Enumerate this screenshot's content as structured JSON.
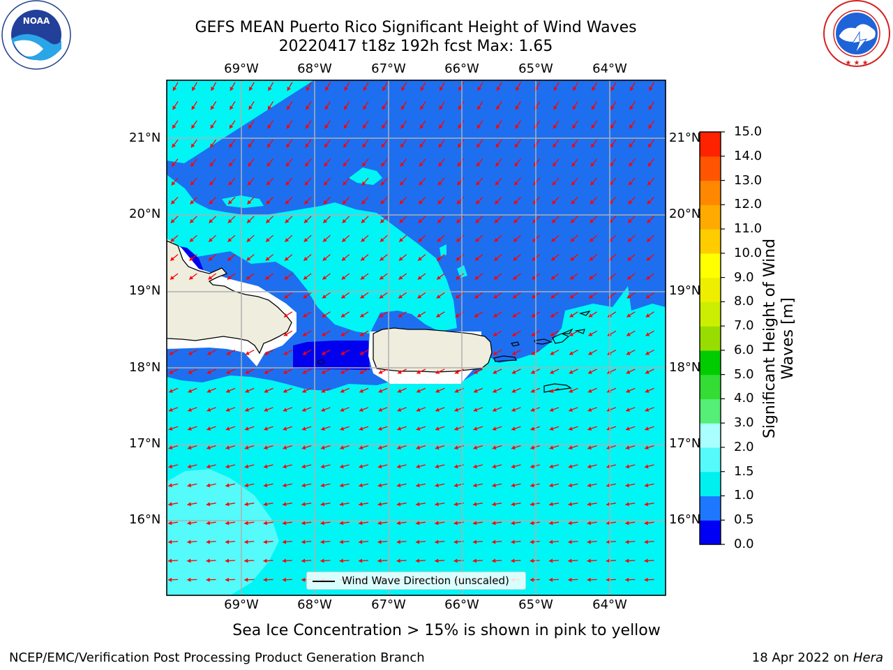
{
  "title": {
    "line1": "GEFS MEAN Puerto Rico Significant Height of Wind Waves",
    "line2": "20220417 t18z 192h fcst   Max: 1.65"
  },
  "map": {
    "lon_labels": [
      "69°W",
      "68°W",
      "67°W",
      "66°W",
      "65°W",
      "64°W"
    ],
    "lat_labels": [
      "21°N",
      "20°N",
      "19°N",
      "18°N",
      "17°N",
      "16°N"
    ],
    "legend_label": "Wind Wave Direction (unscaled)",
    "wind_wave_direction": "from east-northeast toward west-southwest",
    "colors": {
      "land": "#efedde",
      "ocean_low": "#1d6ff0",
      "ocean_mid": "#00f5f5",
      "ocean_high": "#55fafa",
      "very_low": "#0000ee",
      "arrow": "#ff0000"
    }
  },
  "colorbar": {
    "label": "Significant Height of Wind Waves [m]",
    "ticks": [
      "15.0",
      "14.0",
      "13.0",
      "12.0",
      "11.0",
      "10.0",
      "9.0",
      "8.0",
      "7.0",
      "6.0",
      "5.0",
      "4.0",
      "3.0",
      "2.0",
      "1.5",
      "1.0",
      "0.5",
      "0.0"
    ],
    "levels": [
      0.0,
      0.5,
      1.0,
      1.5,
      2.0,
      3.0,
      4.0,
      5.0,
      6.0,
      7.0,
      8.0,
      9.0,
      10.0,
      11.0,
      12.0,
      13.0,
      14.0,
      15.0
    ],
    "colors": [
      "#0000f5",
      "#1e78ff",
      "#00f0f0",
      "#55fafa",
      "#aaffff",
      "#55ee77",
      "#33dd33",
      "#00cc00",
      "#99dd00",
      "#ccee00",
      "#eeee00",
      "#ffff00",
      "#ffcc00",
      "#ffaa00",
      "#ff8800",
      "#ff5500",
      "#ff2200"
    ]
  },
  "caption": "Sea Ice Concentration > 15% is shown in pink to yellow",
  "footer": {
    "left": "NCEP/EMC/Verification Post Processing Product Generation Branch",
    "date": "18 Apr 2022 on ",
    "machine": "Hera"
  },
  "logos": {
    "noaa": "NOAA",
    "noaa_ring": "NATIONAL OCEANIC AND ATMOSPHERIC ADMINISTRATION · U.S. DEPARTMENT OF COMMERCE",
    "nws_ring": "NATIONAL WEATHER SERVICE"
  }
}
